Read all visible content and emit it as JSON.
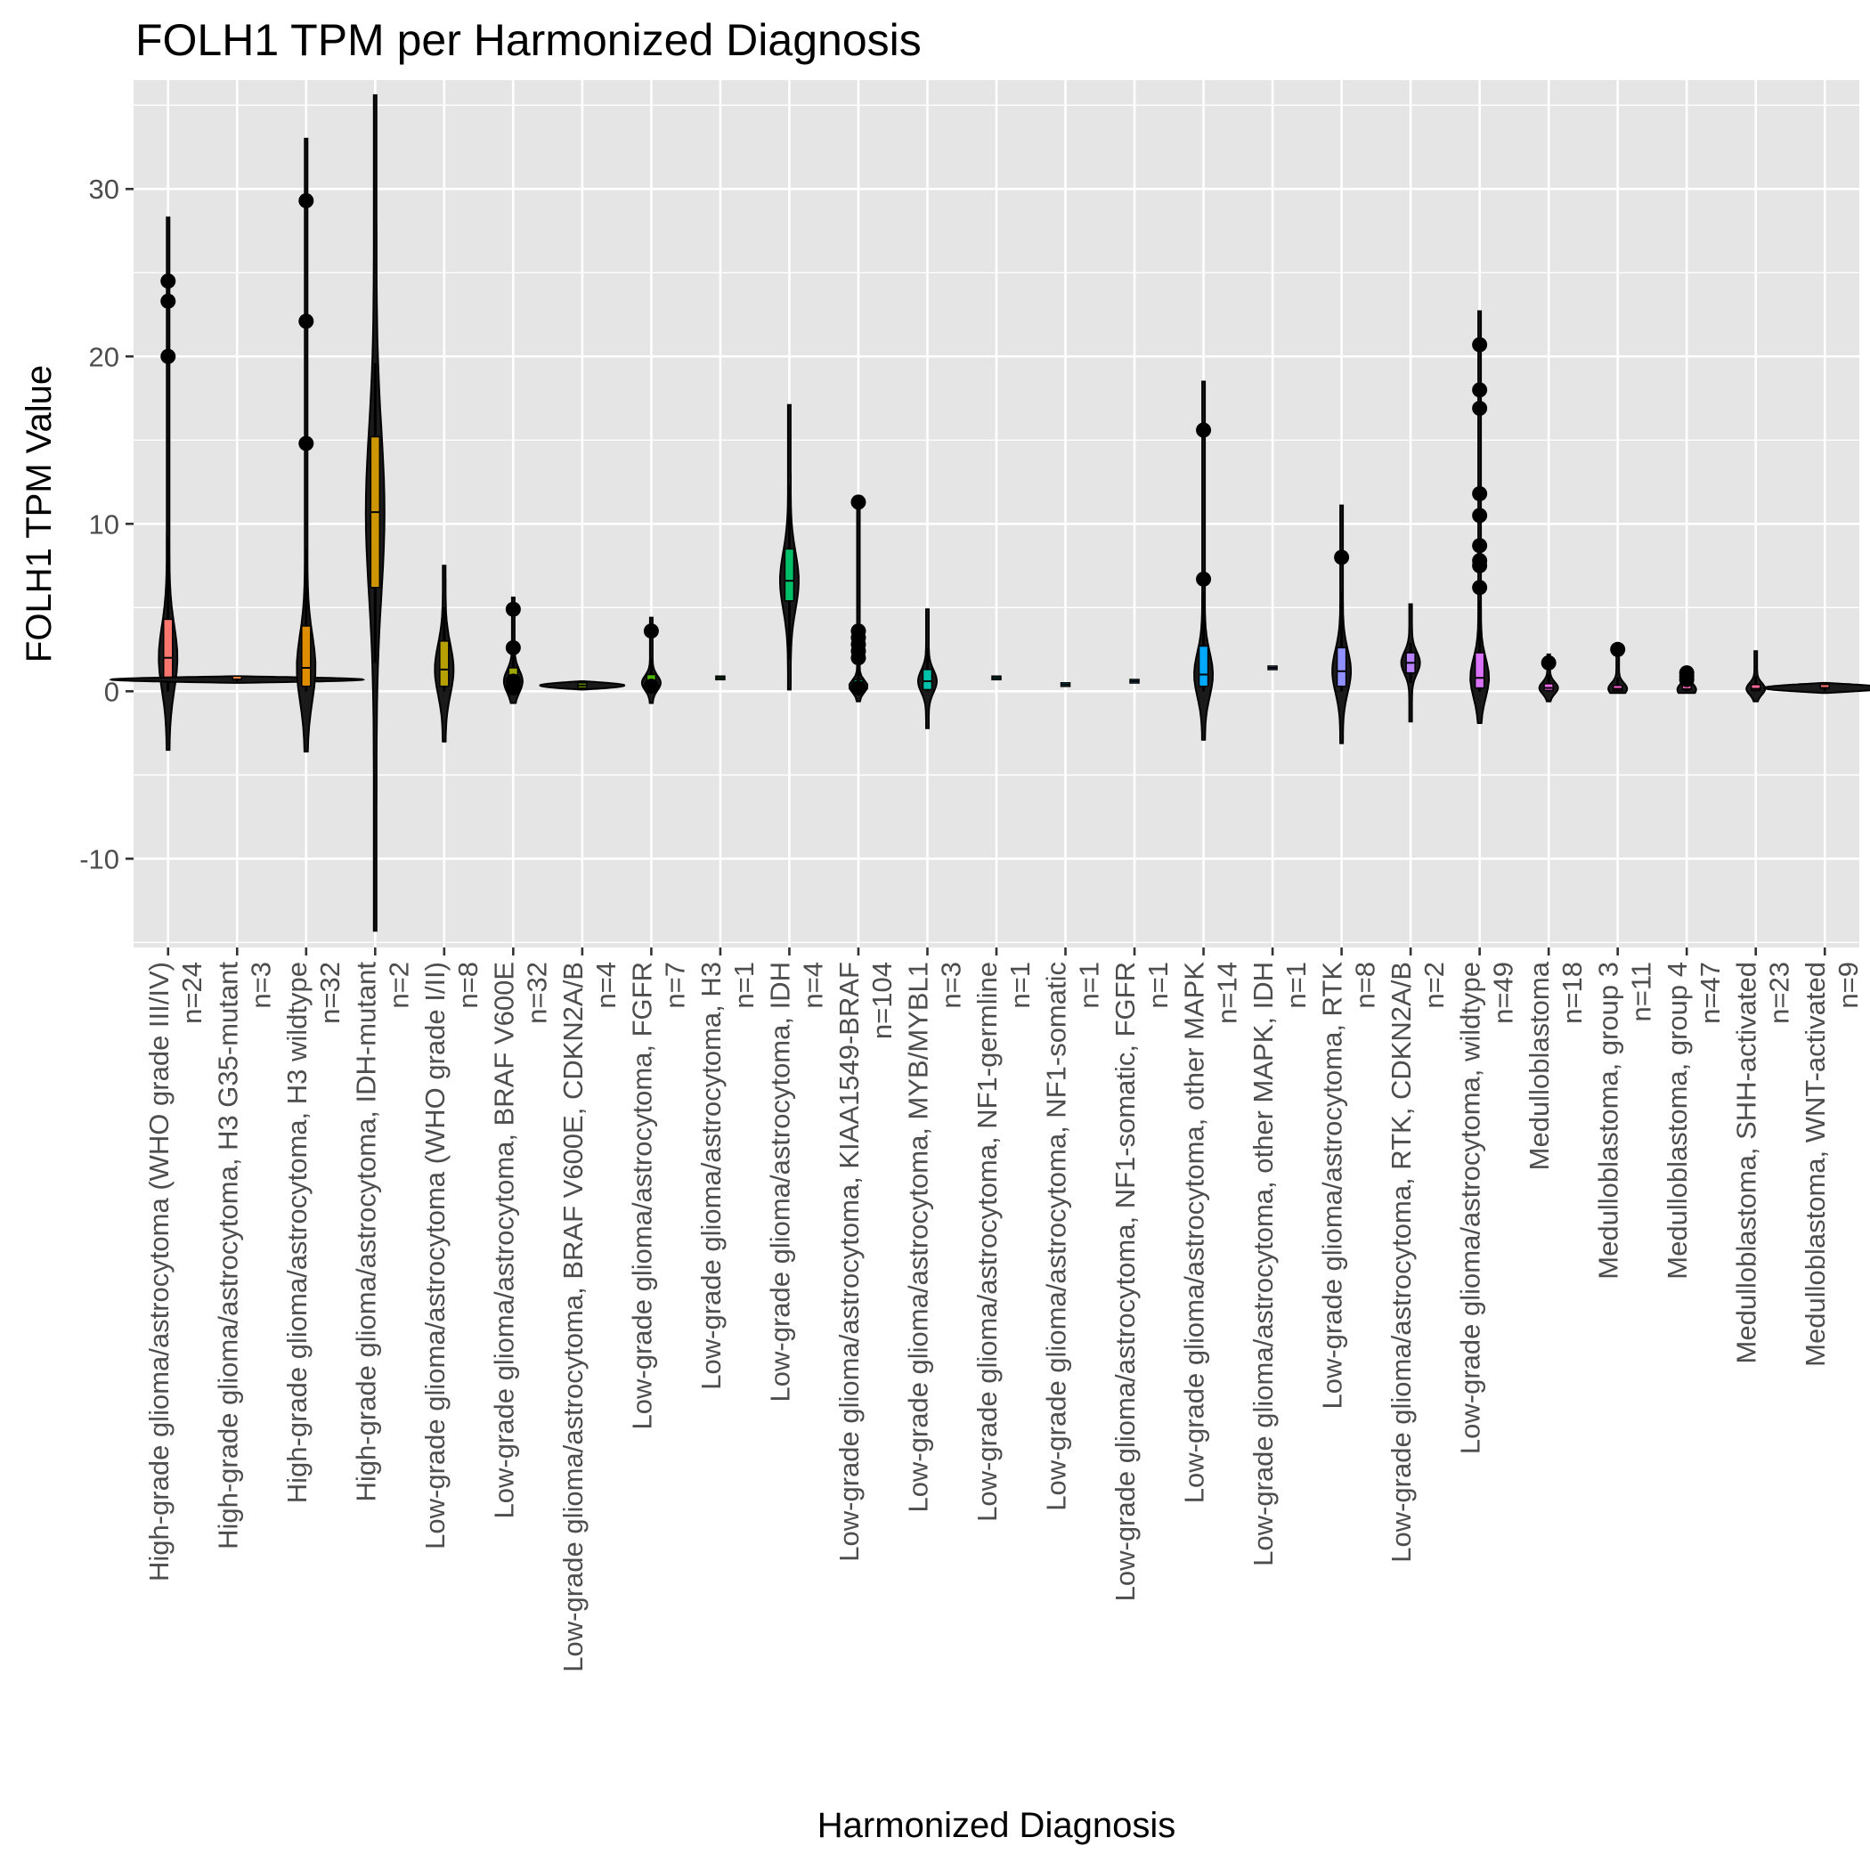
{
  "chart_data": {
    "type": "violin",
    "title": "FOLH1 TPM per Harmonized Diagnosis",
    "xlabel": "Harmonized Diagnosis",
    "ylabel": "FOLH1 TPM Value",
    "ylim": [
      -15.3,
      36.5
    ],
    "yticks": [
      -10,
      0,
      10,
      20,
      30
    ],
    "grid": true,
    "background": "#e5e5e5",
    "grid_color": "#ffffff",
    "categories": [
      {
        "label": "High-grade glioma/astrocytoma (WHO grade III/IV)",
        "n": "n=24",
        "color": "#f8766d",
        "violin": [
          -3.5,
          28.3
        ],
        "box": [
          0.8,
          2.0,
          4.3
        ],
        "whisker": [
          0.0,
          9.2
        ],
        "outliers": [
          20.0,
          23.3,
          24.5
        ]
      },
      {
        "label": "High-grade glioma/astrocytoma, H3 G35-mutant",
        "n": "n=3",
        "color": "#ed813e",
        "violin": [
          0.5,
          0.9
        ],
        "width": 4.0,
        "box": [
          0.6,
          0.7,
          0.8
        ],
        "whisker": [
          0.6,
          0.8
        ],
        "outliers": []
      },
      {
        "label": "High-grade glioma/astrocytoma, H3 wildtype",
        "n": "n=32",
        "color": "#de8c00",
        "violin": [
          -3.6,
          33.0
        ],
        "box": [
          0.3,
          1.4,
          3.9
        ],
        "whisker": [
          0.0,
          8.5
        ],
        "outliers": [
          14.8,
          22.1,
          29.3
        ]
      },
      {
        "label": "High-grade glioma/astrocytoma, IDH-mutant",
        "n": "n=2",
        "color": "#cd9600",
        "violin": [
          -14.3,
          35.6
        ],
        "box": [
          6.2,
          10.7,
          15.2
        ],
        "whisker": [
          1.7,
          19.6
        ],
        "outliers": []
      },
      {
        "label": "Low-grade glioma/astrocytoma (WHO grade I/II)",
        "n": "n=8",
        "color": "#b79f00",
        "violin": [
          -3.0,
          7.5
        ],
        "box": [
          0.3,
          1.3,
          3.0
        ],
        "whisker": [
          0.0,
          5.0
        ],
        "outliers": []
      },
      {
        "label": "Low-grade glioma/astrocytoma, BRAF V600E",
        "n": "n=32",
        "color": "#9da700",
        "violin": [
          -0.7,
          5.6
        ],
        "box": [
          0.2,
          0.6,
          1.4
        ],
        "whisker": [
          0.0,
          2.5
        ],
        "outliers": [
          0.2,
          0.6,
          2.6,
          4.9
        ]
      },
      {
        "label": "Low-grade glioma/astrocytoma, BRAF V600E, CDKN2A/B",
        "n": "n=4",
        "color": "#7cae00",
        "violin": [
          0.1,
          0.6
        ],
        "width": 1.3,
        "box": [
          0.2,
          0.35,
          0.5
        ],
        "whisker": [
          0.1,
          0.6
        ],
        "outliers": []
      },
      {
        "label": "Low-grade glioma/astrocytoma, FGFR",
        "n": "n=7",
        "color": "#49b500",
        "violin": [
          -0.7,
          4.4
        ],
        "box": [
          0.2,
          0.5,
          1.0
        ],
        "whisker": [
          0.0,
          2.0
        ],
        "outliers": [
          0.3,
          3.6
        ]
      },
      {
        "label": "Low-grade glioma/astrocytoma, H3",
        "n": "n=1",
        "color": "#00ba38",
        "violin": [
          0.8,
          0.8
        ],
        "box": [
          0.8,
          0.8,
          0.8
        ],
        "whisker": [
          0.8,
          0.8
        ],
        "outliers": []
      },
      {
        "label": "Low-grade glioma/astrocytoma, IDH",
        "n": "n=4",
        "color": "#00be67",
        "violin": [
          0.1,
          17.1
        ],
        "box": [
          5.4,
          6.6,
          8.5
        ],
        "whisker": [
          1.9,
          12.3
        ],
        "outliers": []
      },
      {
        "label": "Low-grade glioma/astrocytoma, KIAA1549-BRAF",
        "n": "n=104",
        "color": "#00c08b",
        "violin": [
          -0.6,
          11.6
        ],
        "box": [
          0.1,
          0.3,
          0.7
        ],
        "whisker": [
          0.0,
          1.5
        ],
        "outliers": [
          0.2,
          2.0,
          2.4,
          2.8,
          3.2,
          3.6,
          11.3
        ]
      },
      {
        "label": "Low-grade glioma/astrocytoma, MYB/MYBL1",
        "n": "n=3",
        "color": "#00c1a9",
        "violin": [
          -2.2,
          4.9
        ],
        "box": [
          0.1,
          0.6,
          1.3
        ],
        "whisker": [
          0.0,
          2.6
        ],
        "outliers": []
      },
      {
        "label": "Low-grade glioma/astrocytoma, NF1-germline",
        "n": "n=1",
        "color": "#00bfc4",
        "violin": [
          0.8,
          0.8
        ],
        "box": [
          0.8,
          0.8,
          0.8
        ],
        "whisker": [
          0.8,
          0.8
        ],
        "outliers": []
      },
      {
        "label": "Low-grade glioma/astrocytoma, NF1-somatic",
        "n": "n=1",
        "color": "#00bbdc",
        "violin": [
          0.4,
          0.4
        ],
        "box": [
          0.4,
          0.4,
          0.4
        ],
        "whisker": [
          0.4,
          0.4
        ],
        "outliers": []
      },
      {
        "label": "Low-grade glioma/astrocytoma, NF1-somatic, FGFR",
        "n": "n=1",
        "color": "#00b4f0",
        "violin": [
          0.6,
          0.6
        ],
        "box": [
          0.6,
          0.6,
          0.6
        ],
        "whisker": [
          0.6,
          0.6
        ],
        "outliers": []
      },
      {
        "label": "Low-grade glioma/astrocytoma, other MAPK",
        "n": "n=14",
        "color": "#00a9ff",
        "violin": [
          -2.9,
          18.5
        ],
        "box": [
          0.3,
          1.0,
          2.7
        ],
        "whisker": [
          0.0,
          6.0
        ],
        "outliers": [
          6.7,
          15.6
        ]
      },
      {
        "label": "Low-grade glioma/astrocytoma, other MAPK, IDH",
        "n": "n=1",
        "color": "#619cff",
        "violin": [
          1.4,
          1.4
        ],
        "box": [
          1.4,
          1.4,
          1.4
        ],
        "whisker": [
          1.4,
          1.4
        ],
        "outliers": []
      },
      {
        "label": "Low-grade glioma/astrocytoma, RTK",
        "n": "n=8",
        "color": "#8f91ff",
        "violin": [
          -3.1,
          11.1
        ],
        "box": [
          0.3,
          1.2,
          2.6
        ],
        "whisker": [
          0.0,
          6.0
        ],
        "outliers": [
          8.0
        ]
      },
      {
        "label": "Low-grade glioma/astrocytoma, RTK, CDKN2A/B",
        "n": "n=2",
        "color": "#b983ff",
        "violin": [
          -1.8,
          5.2
        ],
        "box": [
          1.1,
          1.7,
          2.3
        ],
        "whisker": [
          0.5,
          2.9
        ],
        "outliers": []
      },
      {
        "label": "Low-grade glioma/astrocytoma, wildtype",
        "n": "n=49",
        "color": "#db72fb",
        "violin": [
          -1.9,
          22.7
        ],
        "box": [
          0.2,
          0.8,
          2.3
        ],
        "whisker": [
          0.0,
          5.4
        ],
        "outliers": [
          6.2,
          7.5,
          7.8,
          8.7,
          10.5,
          11.8,
          16.9,
          18.0,
          20.7
        ]
      },
      {
        "label": "Medulloblastoma",
        "n": "n=18",
        "color": "#ef67eb",
        "violin": [
          -0.6,
          2.2
        ],
        "box": [
          0.05,
          0.2,
          0.45
        ],
        "whisker": [
          0.0,
          1.0
        ],
        "outliers": [
          1.7
        ]
      },
      {
        "label": "Medulloblastoma, group 3",
        "n": "n=11",
        "color": "#fc61d5",
        "violin": [
          -0.1,
          2.4
        ],
        "box": [
          0.05,
          0.15,
          0.35
        ],
        "whisker": [
          0.0,
          0.8
        ],
        "outliers": [
          2.5
        ]
      },
      {
        "label": "Medulloblastoma, group 4",
        "n": "n=47",
        "color": "#ff62bc",
        "violin": [
          -0.1,
          1.2
        ],
        "box": [
          0.05,
          0.1,
          0.25
        ],
        "whisker": [
          0.0,
          0.5
        ],
        "outliers": [
          0.7,
          0.9,
          1.1
        ]
      },
      {
        "label": "Medulloblastoma, SHH-activated",
        "n": "n=23",
        "color": "#ff6a98",
        "violin": [
          -0.6,
          2.4
        ],
        "box": [
          0.05,
          0.15,
          0.4
        ],
        "whisker": [
          0.0,
          0.9
        ],
        "outliers": []
      },
      {
        "label": "Medulloblastoma, WNT-activated",
        "n": "n=9",
        "color": "#f8766d",
        "violin": [
          -0.1,
          0.5
        ],
        "width": 1.9,
        "box": [
          0.1,
          0.2,
          0.3
        ],
        "whisker": [
          0.0,
          0.4
        ],
        "outliers": []
      }
    ]
  }
}
